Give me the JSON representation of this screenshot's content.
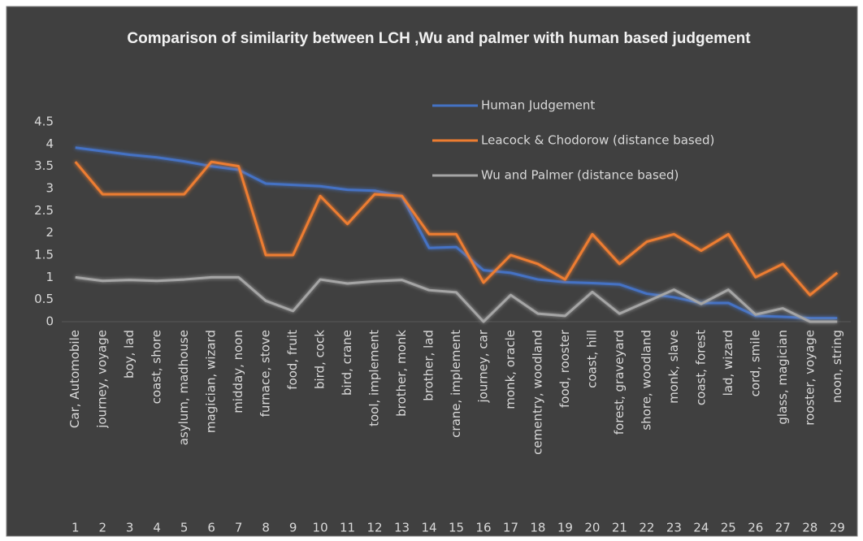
{
  "chart_data": {
    "type": "line",
    "title": "Comparison of similarity between LCH ,Wu and palmer with human based judgement",
    "categories": [
      "Car, Automobile",
      "journey, voyage",
      "boy, lad",
      "coast, shore",
      "asylum, madhouse",
      "magician, wizard",
      "midday, noon",
      "furnace, stove",
      "food, fruit",
      "bird, cock",
      "bird, crane",
      "tool, implement",
      "brother, monk",
      "brother, lad",
      "crane, implement",
      "journey, car",
      "monk, oracle",
      "cementry, woodland",
      "food, rooster",
      "coast, hill",
      "forest, graveyard",
      "shore, woodland",
      "monk, slave",
      "coast, forest",
      "lad, wizard",
      "cord, smile",
      "glass, magician",
      "rooster, voyage",
      "noon, string"
    ],
    "category_numbers": [
      1,
      2,
      3,
      4,
      5,
      6,
      7,
      8,
      9,
      10,
      11,
      12,
      13,
      14,
      15,
      16,
      17,
      18,
      19,
      20,
      21,
      22,
      23,
      24,
      25,
      26,
      27,
      28,
      29
    ],
    "series": [
      {
        "name": "Human Judgement",
        "color": "#4472c4",
        "values": [
          3.92,
          3.84,
          3.76,
          3.7,
          3.61,
          3.5,
          3.42,
          3.11,
          3.08,
          3.05,
          2.97,
          2.95,
          2.82,
          1.66,
          1.68,
          1.16,
          1.1,
          0.95,
          0.89,
          0.87,
          0.84,
          0.63,
          0.55,
          0.42,
          0.42,
          0.13,
          0.11,
          0.08,
          0.08
        ]
      },
      {
        "name": "Leacock & Chodorow (distance based)",
        "color": "#ed7d31",
        "values": [
          3.6,
          2.87,
          2.87,
          2.87,
          2.87,
          3.6,
          3.5,
          1.5,
          1.5,
          2.83,
          2.2,
          2.87,
          2.83,
          1.97,
          1.97,
          0.88,
          1.5,
          1.3,
          0.95,
          1.97,
          1.3,
          1.8,
          1.97,
          1.6,
          1.97,
          1.0,
          1.3,
          0.6,
          1.1
        ]
      },
      {
        "name": "Wu and Palmer (distance based)",
        "color": "#a5a5a5",
        "values": [
          1.0,
          0.92,
          0.94,
          0.92,
          0.95,
          1.0,
          1.0,
          0.47,
          0.24,
          0.95,
          0.86,
          0.91,
          0.94,
          0.71,
          0.66,
          0.0,
          0.6,
          0.18,
          0.13,
          0.67,
          0.18,
          0.45,
          0.72,
          0.4,
          0.72,
          0.16,
          0.3,
          0.0,
          0.0
        ]
      }
    ],
    "ylim": [
      0,
      4.5
    ],
    "yticks": [
      0,
      0.5,
      1,
      1.5,
      2,
      2.5,
      3,
      3.5,
      4,
      4.5
    ],
    "grid": false,
    "legend": "top-right"
  }
}
